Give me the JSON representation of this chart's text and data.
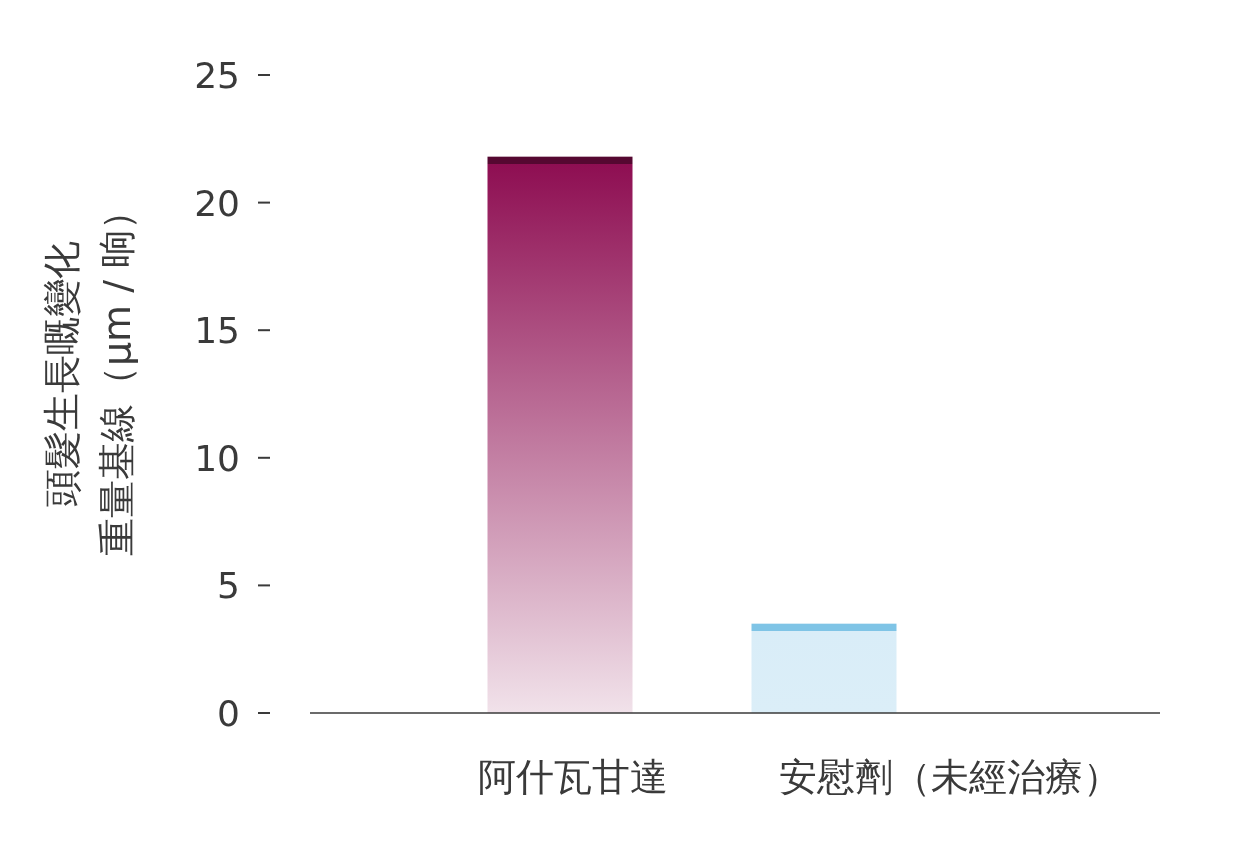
{
  "chart_data": {
    "type": "bar",
    "ylabel": "頭髮生長嘅變化重量基線（μm / 晌）",
    "categories": [
      "阿什瓦甘達",
      "安慰劑（未經治療）"
    ],
    "values": [
      21.8,
      3.5
    ],
    "colors": [
      "#8e0e52",
      "#7fc4e6"
    ],
    "ylim": [
      0,
      25
    ],
    "yticks": [
      0,
      5,
      10,
      15,
      20,
      25
    ],
    "grid": false
  }
}
